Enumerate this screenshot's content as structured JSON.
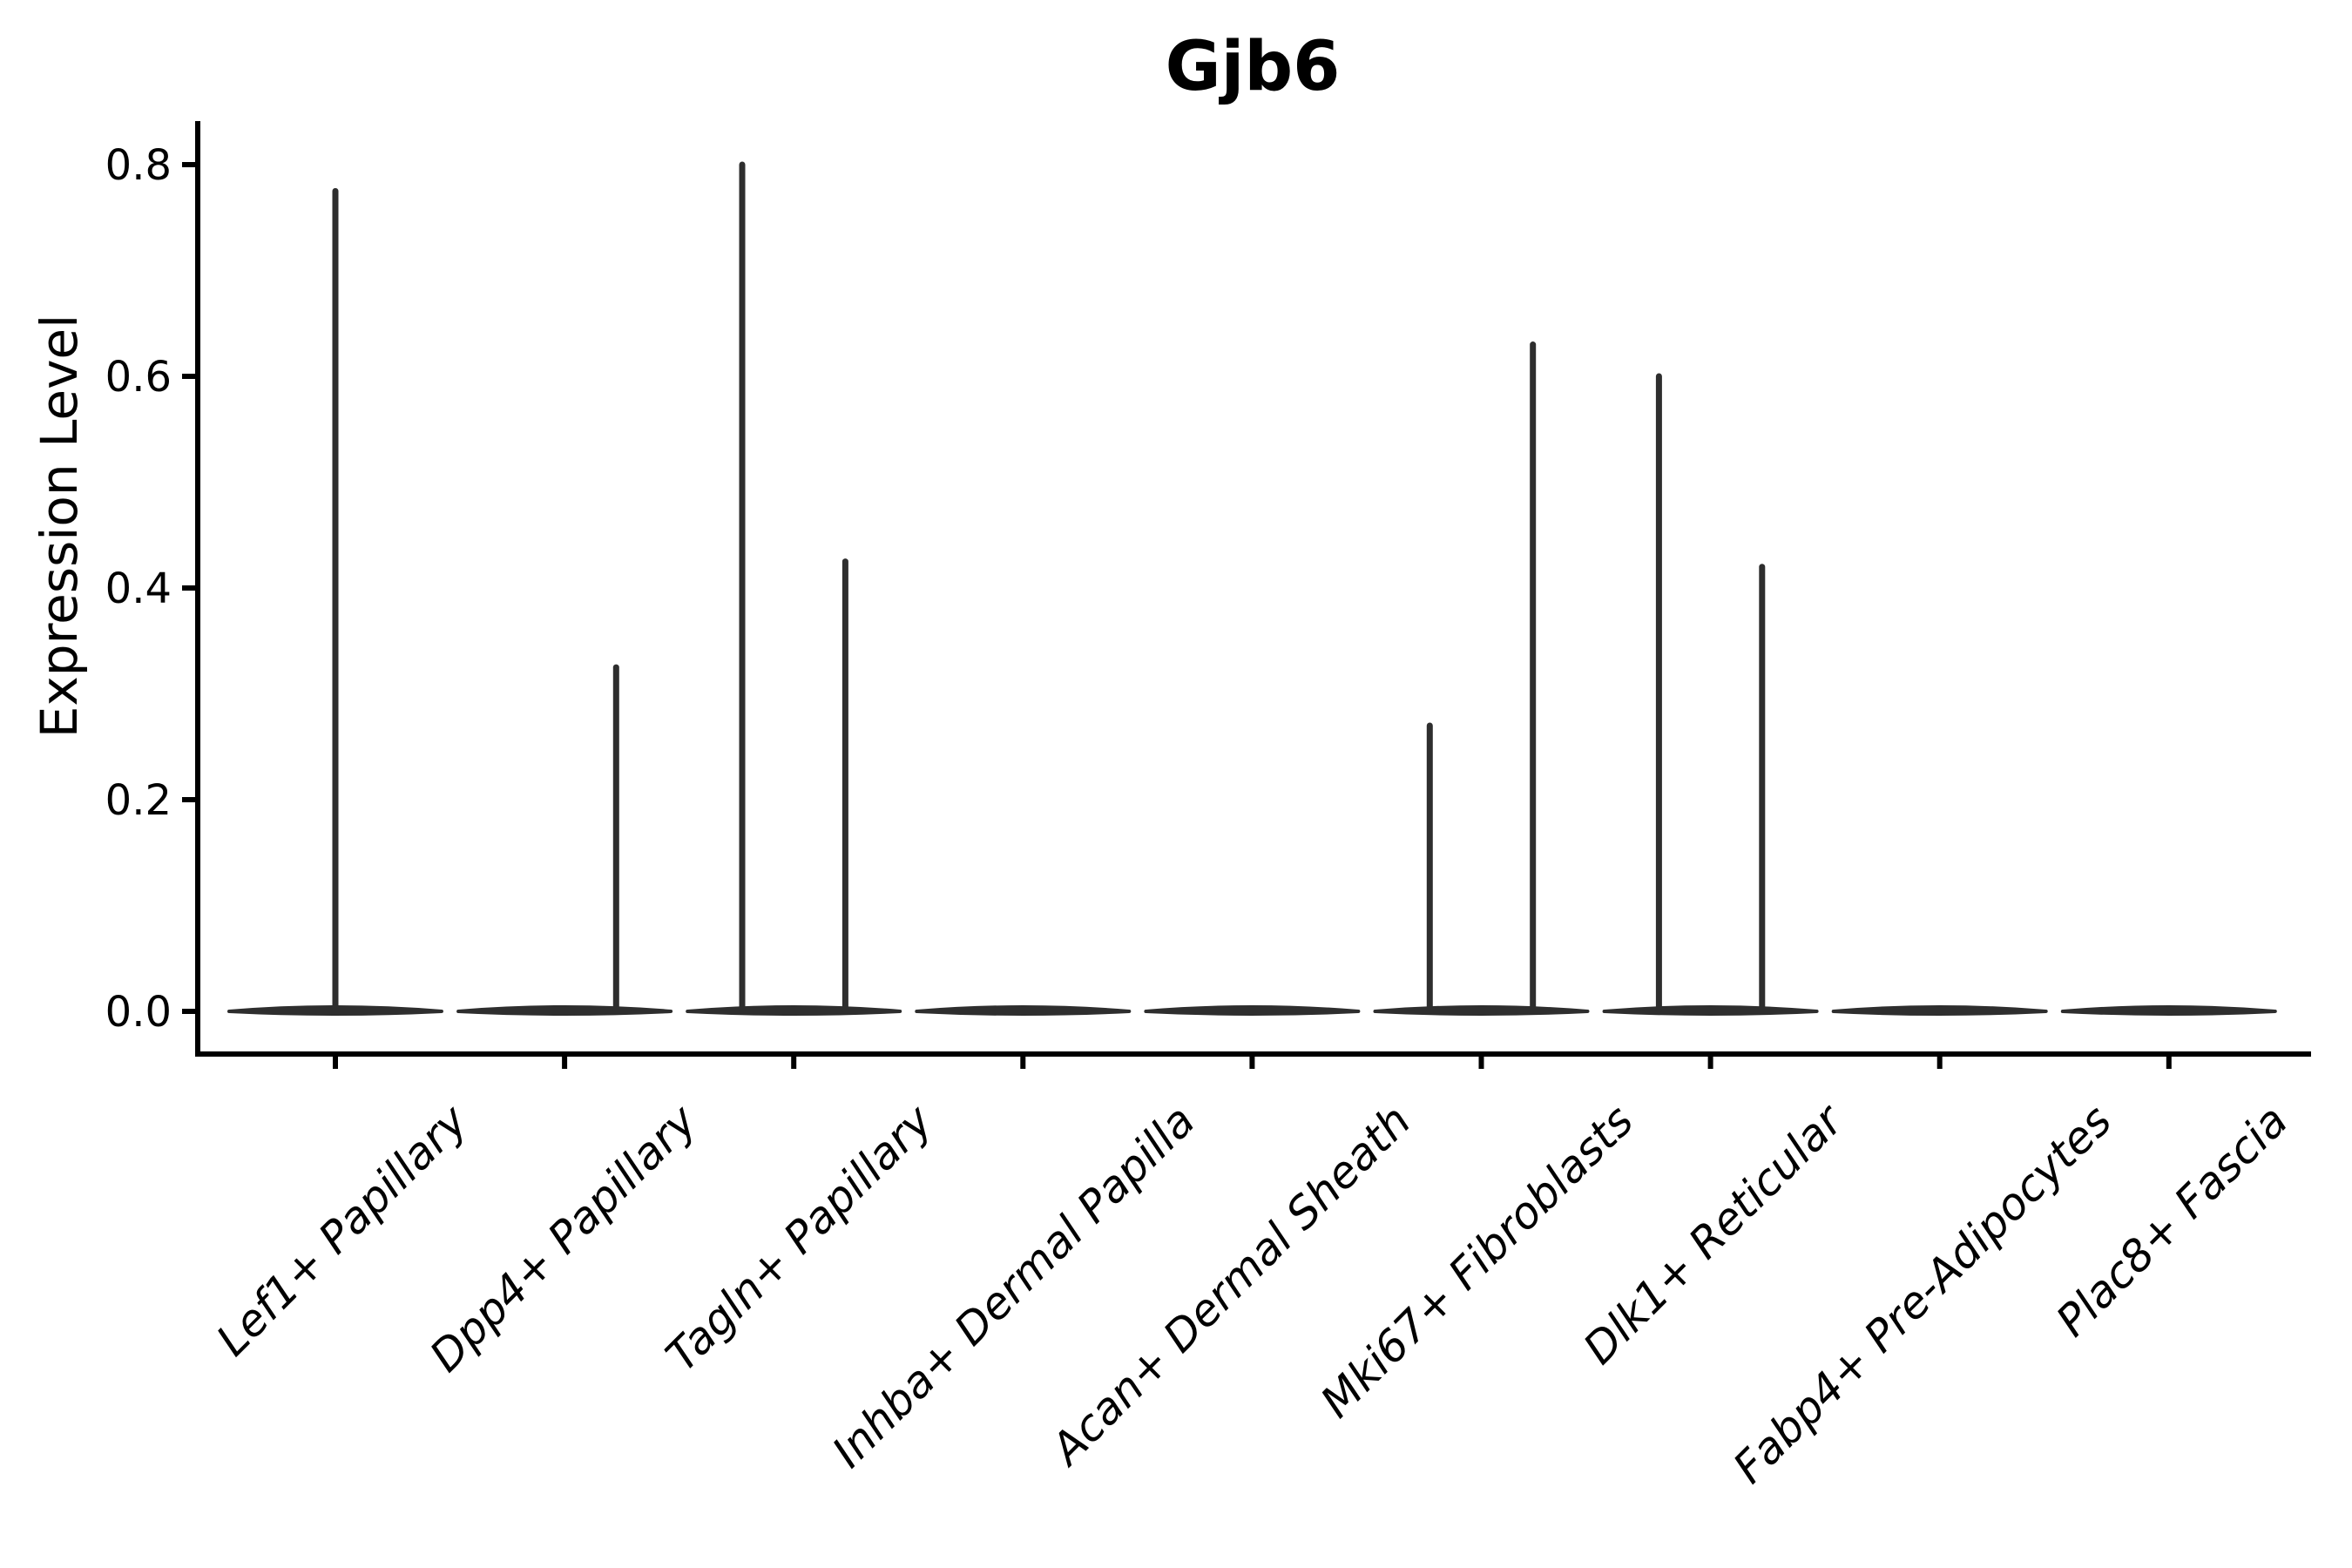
{
  "title": "Gjb6",
  "chart_data": {
    "type": "violin",
    "title": "Gjb6",
    "xlabel": "",
    "ylabel": "Expression Level",
    "ylim": [
      -0.04,
      0.84
    ],
    "yticks": [
      0.0,
      0.2,
      0.4,
      0.6,
      0.8
    ],
    "ytick_labels": [
      "0.0",
      "0.2",
      "0.4",
      "0.6",
      "0.8"
    ],
    "grid": false,
    "legend": "none",
    "categories": [
      "Lef1+ Papillary",
      "Dpp4+ Papillary",
      "Tagln+ Papillary",
      "Inhba+ Dermal Papilla",
      "Acan+ Dermal Sheath",
      "Mki67+ Fibroblasts",
      "Dlk1+ Reticular",
      "Fabp4+ Pre-Adipocytes",
      "Plac8+ Fascia"
    ],
    "violin_color": "#2e2e2e",
    "axis_color": "#000000",
    "series": [
      {
        "category": "Lef1+ Papillary",
        "zero_body": true,
        "spikes": [
          {
            "offset": 0.0,
            "max": 0.775
          }
        ]
      },
      {
        "category": "Dpp4+ Papillary",
        "zero_body": true,
        "spikes": [
          {
            "offset": 0.225,
            "max": 0.325
          }
        ]
      },
      {
        "category": "Tagln+ Papillary",
        "zero_body": true,
        "spikes": [
          {
            "offset": -0.225,
            "max": 0.8
          },
          {
            "offset": 0.225,
            "max": 0.425
          }
        ]
      },
      {
        "category": "Inhba+ Dermal Papilla",
        "zero_body": true,
        "spikes": []
      },
      {
        "category": "Acan+ Dermal Sheath",
        "zero_body": true,
        "spikes": []
      },
      {
        "category": "Mki67+ Fibroblasts",
        "zero_body": true,
        "spikes": [
          {
            "offset": -0.225,
            "max": 0.27
          },
          {
            "offset": 0.225,
            "max": 0.63
          }
        ]
      },
      {
        "category": "Dlk1+ Reticular",
        "zero_body": true,
        "spikes": [
          {
            "offset": -0.225,
            "max": 0.6
          },
          {
            "offset": 0.225,
            "max": 0.42
          }
        ]
      },
      {
        "category": "Fabp4+ Pre-Adipocytes",
        "zero_body": true,
        "spikes": []
      },
      {
        "category": "Plac8+ Fascia",
        "zero_body": true,
        "spikes": []
      }
    ]
  }
}
